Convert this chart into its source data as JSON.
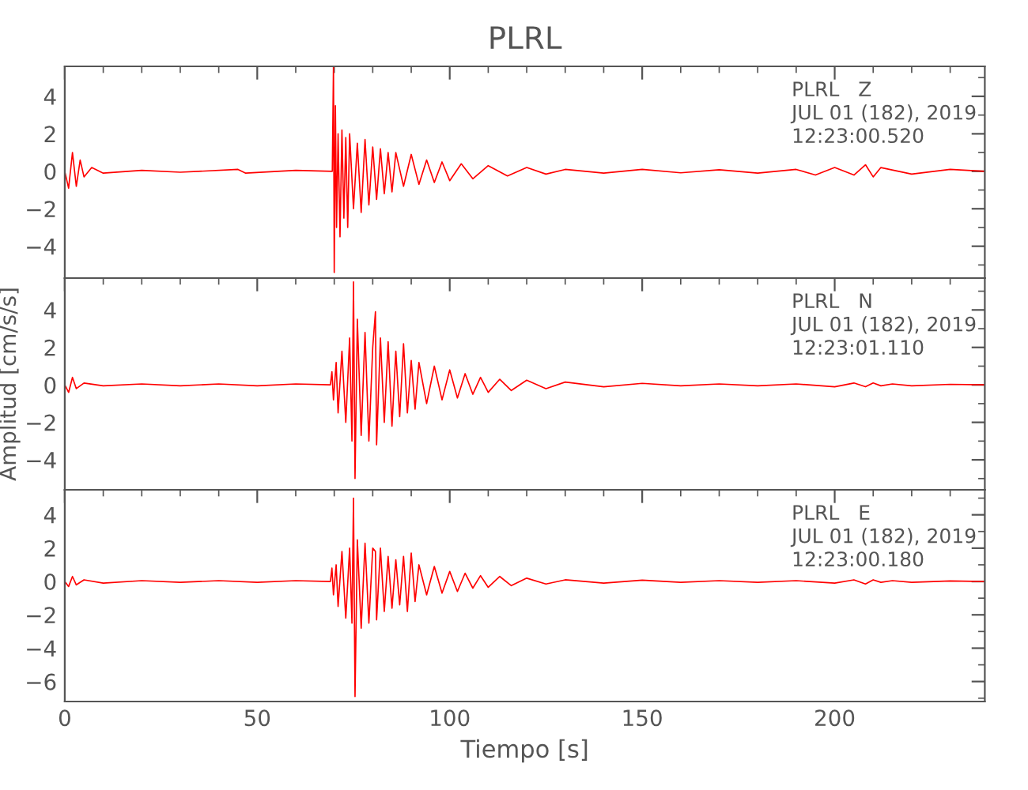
{
  "chart_data": [
    {
      "type": "line",
      "title": "PLRL",
      "annotations": [
        "PLRL   Z",
        "JUL 01 (182), 2019",
        "12:23:00.520"
      ],
      "x": [
        0,
        1,
        2,
        3,
        4,
        5,
        7,
        10,
        20,
        30,
        45,
        47,
        60,
        69.5,
        69.8,
        70,
        70.3,
        70.6,
        71,
        71.5,
        72,
        72.5,
        73,
        73.5,
        74,
        75,
        76,
        77,
        78,
        79,
        80,
        81,
        82,
        83,
        84,
        85,
        86,
        88,
        90,
        92,
        94,
        96,
        98,
        100,
        103,
        106,
        110,
        115,
        120,
        125,
        130,
        140,
        150,
        160,
        170,
        180,
        190,
        195,
        200,
        205,
        208,
        210,
        212,
        220,
        230,
        239
      ],
      "series": [
        {
          "color": "#ff0000",
          "values": [
            0,
            -0.9,
            1.0,
            -0.8,
            0.6,
            -0.3,
            0.2,
            -0.1,
            0.05,
            -0.05,
            0.1,
            -0.1,
            0.05,
            0,
            5.6,
            -5.4,
            3.5,
            -3.0,
            2.0,
            -3.5,
            2.2,
            -2.5,
            1.8,
            -3.0,
            2.0,
            -2.0,
            1.5,
            -2.2,
            1.7,
            -1.8,
            1.3,
            -1.5,
            1.2,
            -1.2,
            1.0,
            -1.1,
            1.0,
            -0.8,
            0.9,
            -0.7,
            0.6,
            -0.6,
            0.5,
            -0.5,
            0.4,
            -0.4,
            0.3,
            -0.25,
            0.2,
            -0.15,
            0.1,
            -0.1,
            0.1,
            -0.08,
            0.08,
            -0.1,
            0.1,
            -0.2,
            0.2,
            -0.2,
            0.35,
            -0.3,
            0.2,
            -0.15,
            0.1,
            0
          ]
        }
      ],
      "xlim": [
        0,
        239
      ],
      "ylim": [
        -5.7,
        5.6
      ],
      "xticks": [
        0,
        50,
        100,
        150,
        200
      ],
      "yticks": [
        {
          "value": -4,
          "label": "−4"
        },
        {
          "value": -2,
          "label": "−2"
        },
        0,
        2,
        4
      ],
      "tick_labels": "y"
    },
    {
      "type": "line",
      "ylabel": "Amplitud [cm/s/s]",
      "annotations": [
        "PLRL   N",
        "JUL 01 (182), 2019",
        "12:23:01.110"
      ],
      "x": [
        0,
        1,
        2,
        3,
        5,
        10,
        20,
        30,
        40,
        50,
        60,
        69,
        69.4,
        69.8,
        70.5,
        71,
        72,
        73,
        74,
        74.6,
        75,
        75.4,
        76,
        77,
        78,
        79,
        80,
        80.7,
        81,
        82,
        83,
        84,
        85,
        86,
        87,
        88,
        89,
        90,
        91,
        92,
        94,
        96,
        98,
        100,
        102,
        104,
        106,
        108,
        110,
        113,
        116,
        120,
        125,
        130,
        140,
        150,
        160,
        170,
        180,
        190,
        200,
        205,
        208,
        210,
        212,
        215,
        220,
        230,
        239
      ],
      "series": [
        {
          "color": "#ff0000",
          "values": [
            0,
            -0.4,
            0.4,
            -0.2,
            0.1,
            -0.05,
            0.05,
            -0.05,
            0.05,
            -0.05,
            0.05,
            0,
            0.7,
            -0.8,
            1.2,
            -1.5,
            1.8,
            -2.0,
            2.5,
            -3.0,
            5.5,
            -5.0,
            3.5,
            -2.7,
            2.8,
            -3.0,
            2.0,
            3.9,
            -3.2,
            2.5,
            -2.0,
            2.3,
            -2.2,
            1.8,
            -1.7,
            2.2,
            -1.5,
            1.3,
            -1.3,
            1.2,
            -1.0,
            1.0,
            -0.8,
            0.8,
            -0.7,
            0.6,
            -0.5,
            0.4,
            -0.4,
            0.3,
            -0.3,
            0.25,
            -0.2,
            0.15,
            -0.1,
            0.08,
            -0.05,
            0.05,
            -0.05,
            0.05,
            -0.1,
            0.1,
            -0.1,
            0.1,
            -0.05,
            0.05,
            -0.05,
            0.03,
            0
          ]
        }
      ],
      "xlim": [
        0,
        239
      ],
      "ylim": [
        -5.6,
        5.7
      ],
      "xticks": [
        0,
        50,
        100,
        150,
        200
      ],
      "yticks": [
        {
          "value": -4,
          "label": "−4"
        },
        {
          "value": -2,
          "label": "−2"
        },
        0,
        2,
        4
      ],
      "tick_labels": "y"
    },
    {
      "type": "line",
      "xlabel": "Tiempo [s]",
      "annotations": [
        "PLRL   E",
        "JUL 01 (182), 2019",
        "12:23:00.180"
      ],
      "x": [
        0,
        1,
        2,
        3,
        5,
        10,
        20,
        30,
        40,
        50,
        60,
        69,
        69.4,
        69.8,
        70.5,
        71,
        72,
        73,
        74,
        74.6,
        75,
        75.4,
        76,
        77,
        78,
        79,
        80,
        80.7,
        81,
        82,
        83,
        84,
        85,
        86,
        87,
        88,
        89,
        90,
        91,
        92,
        94,
        96,
        98,
        100,
        102,
        104,
        106,
        108,
        110,
        113,
        116,
        120,
        125,
        130,
        140,
        150,
        160,
        170,
        180,
        190,
        200,
        205,
        208,
        210,
        212,
        215,
        220,
        230,
        239
      ],
      "series": [
        {
          "color": "#ff0000",
          "values": [
            0,
            -0.3,
            0.3,
            -0.2,
            0.1,
            -0.1,
            0.05,
            -0.05,
            0.05,
            -0.05,
            0.05,
            0,
            0.8,
            -0.8,
            1.0,
            -1.5,
            1.8,
            -2.2,
            2.0,
            -2.5,
            5.0,
            -6.9,
            2.5,
            -2.8,
            2.3,
            -2.5,
            2.0,
            1.8,
            -2.3,
            2.0,
            -1.8,
            1.5,
            -1.6,
            1.3,
            -1.4,
            1.5,
            -1.8,
            1.7,
            -1.2,
            1.0,
            -0.8,
            0.9,
            -0.7,
            0.6,
            -0.6,
            0.5,
            -0.4,
            0.35,
            -0.35,
            0.3,
            -0.25,
            0.2,
            -0.15,
            0.1,
            -0.1,
            0.08,
            -0.05,
            0.05,
            -0.05,
            0.05,
            -0.1,
            0.1,
            -0.15,
            0.1,
            -0.05,
            0.05,
            -0.05,
            0.03,
            0
          ]
        }
      ],
      "xlim": [
        0,
        239
      ],
      "ylim": [
        -7.2,
        5.5
      ],
      "xticks": [
        0,
        50,
        100,
        150,
        200
      ],
      "yticks": [
        {
          "value": -6,
          "label": "−6"
        },
        {
          "value": -4,
          "label": "−4"
        },
        {
          "value": -2,
          "label": "−2"
        },
        0,
        2,
        4
      ]
    }
  ]
}
